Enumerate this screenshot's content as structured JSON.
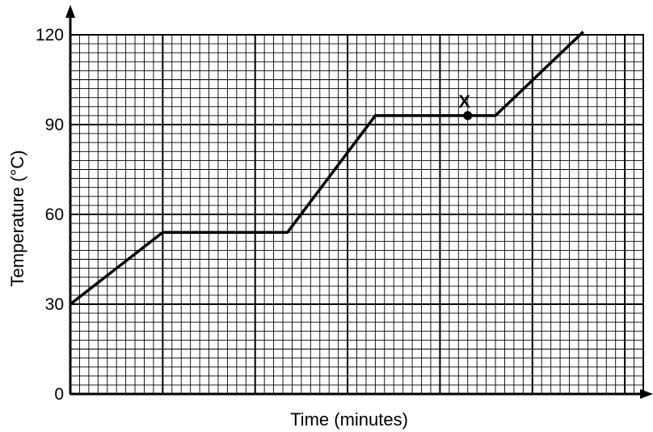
{
  "chart_data": {
    "type": "line",
    "title": "",
    "xlabel": "Time (minutes)",
    "ylabel": "Temperature (°C)",
    "xlim": [
      0,
      6.2
    ],
    "ylim": [
      0,
      120
    ],
    "yticks": [
      "0",
      "30",
      "60",
      "90",
      "120"
    ],
    "xticks": [],
    "grid": true,
    "legend": "none",
    "series": [
      {
        "points": [
          {
            "x": 0,
            "y": 30
          },
          {
            "x": 1,
            "y": 54
          },
          {
            "x": 2.35,
            "y": 54
          },
          {
            "x": 3.3,
            "y": 93
          },
          {
            "x": 4.6,
            "y": 93
          },
          {
            "x": 5.55,
            "y": 121
          }
        ]
      }
    ],
    "annotations": [
      {
        "label": "X",
        "x": 4.3,
        "y": 93
      }
    ],
    "colors": {
      "line": "#000000",
      "grid": "#000000",
      "background": "#ffffff"
    }
  }
}
